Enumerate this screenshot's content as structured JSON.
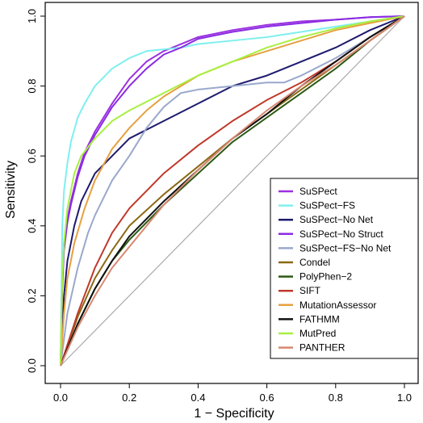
{
  "chart_data": {
    "type": "line",
    "title": "",
    "xlabel": "1 − Specificity",
    "ylabel": "Sensitivity",
    "xlim": [
      0,
      1
    ],
    "ylim": [
      0,
      1
    ],
    "x_ticks": [
      "0.0",
      "0.2",
      "0.4",
      "0.6",
      "0.8",
      "1.0"
    ],
    "y_ticks": [
      "0.0",
      "0.2",
      "0.4",
      "0.6",
      "0.8",
      "1.0"
    ],
    "grid": false,
    "legend_position": "bottom-right",
    "diagonal_color": "#aaaaaa",
    "series": [
      {
        "name": "SuSPect",
        "color": "#9b30e0",
        "points": [
          [
            0,
            0
          ],
          [
            0.005,
            0.25
          ],
          [
            0.01,
            0.35
          ],
          [
            0.02,
            0.42
          ],
          [
            0.03,
            0.47
          ],
          [
            0.05,
            0.55
          ],
          [
            0.07,
            0.61
          ],
          [
            0.1,
            0.67
          ],
          [
            0.15,
            0.75
          ],
          [
            0.2,
            0.82
          ],
          [
            0.25,
            0.87
          ],
          [
            0.3,
            0.9
          ],
          [
            0.35,
            0.92
          ],
          [
            0.4,
            0.94
          ],
          [
            0.5,
            0.96
          ],
          [
            0.6,
            0.975
          ],
          [
            0.7,
            0.985
          ],
          [
            0.8,
            0.99
          ],
          [
            0.9,
            0.997
          ],
          [
            1,
            1
          ]
        ]
      },
      {
        "name": "SuSPect−FS",
        "color": "#7fefef",
        "points": [
          [
            0,
            0
          ],
          [
            0.005,
            0.4
          ],
          [
            0.01,
            0.5
          ],
          [
            0.02,
            0.58
          ],
          [
            0.03,
            0.64
          ],
          [
            0.05,
            0.71
          ],
          [
            0.07,
            0.75
          ],
          [
            0.1,
            0.8
          ],
          [
            0.15,
            0.85
          ],
          [
            0.2,
            0.88
          ],
          [
            0.25,
            0.9
          ],
          [
            0.3,
            0.905
          ],
          [
            0.35,
            0.91
          ],
          [
            0.4,
            0.92
          ],
          [
            0.5,
            0.93
          ],
          [
            0.6,
            0.94
          ],
          [
            0.7,
            0.955
          ],
          [
            0.8,
            0.97
          ],
          [
            0.9,
            0.985
          ],
          [
            1,
            1
          ]
        ]
      },
      {
        "name": "SuSPect−No Net",
        "color": "#1e1a6e",
        "points": [
          [
            0,
            0
          ],
          [
            0.01,
            0.2
          ],
          [
            0.02,
            0.3
          ],
          [
            0.04,
            0.4
          ],
          [
            0.06,
            0.47
          ],
          [
            0.1,
            0.55
          ],
          [
            0.15,
            0.6
          ],
          [
            0.2,
            0.65
          ],
          [
            0.3,
            0.7
          ],
          [
            0.4,
            0.75
          ],
          [
            0.5,
            0.8
          ],
          [
            0.6,
            0.83
          ],
          [
            0.7,
            0.87
          ],
          [
            0.8,
            0.91
          ],
          [
            0.9,
            0.96
          ],
          [
            1,
            1
          ]
        ]
      },
      {
        "name": "SuSPect−No Struct",
        "color": "#8a2be2",
        "points": [
          [
            0,
            0
          ],
          [
            0.005,
            0.22
          ],
          [
            0.01,
            0.33
          ],
          [
            0.02,
            0.41
          ],
          [
            0.03,
            0.46
          ],
          [
            0.05,
            0.54
          ],
          [
            0.07,
            0.6
          ],
          [
            0.1,
            0.66
          ],
          [
            0.15,
            0.74
          ],
          [
            0.2,
            0.8
          ],
          [
            0.25,
            0.85
          ],
          [
            0.3,
            0.89
          ],
          [
            0.35,
            0.91
          ],
          [
            0.4,
            0.935
          ],
          [
            0.5,
            0.955
          ],
          [
            0.6,
            0.97
          ],
          [
            0.7,
            0.98
          ],
          [
            0.8,
            0.99
          ],
          [
            0.9,
            0.997
          ],
          [
            1,
            1
          ]
        ]
      },
      {
        "name": "SuSPect−FS−No Net",
        "color": "#9aa8cc",
        "points": [
          [
            0,
            0
          ],
          [
            0.02,
            0.15
          ],
          [
            0.05,
            0.28
          ],
          [
            0.08,
            0.38
          ],
          [
            0.1,
            0.43
          ],
          [
            0.15,
            0.53
          ],
          [
            0.2,
            0.6
          ],
          [
            0.25,
            0.68
          ],
          [
            0.3,
            0.74
          ],
          [
            0.35,
            0.78
          ],
          [
            0.4,
            0.79
          ],
          [
            0.5,
            0.8
          ],
          [
            0.6,
            0.81
          ],
          [
            0.65,
            0.81
          ],
          [
            0.7,
            0.83
          ],
          [
            0.8,
            0.88
          ],
          [
            0.9,
            0.94
          ],
          [
            1,
            1
          ]
        ]
      },
      {
        "name": "Condel",
        "color": "#8b6914",
        "points": [
          [
            0,
            0
          ],
          [
            0.05,
            0.14
          ],
          [
            0.1,
            0.25
          ],
          [
            0.15,
            0.33
          ],
          [
            0.2,
            0.4
          ],
          [
            0.3,
            0.49
          ],
          [
            0.4,
            0.57
          ],
          [
            0.5,
            0.65
          ],
          [
            0.6,
            0.72
          ],
          [
            0.7,
            0.79
          ],
          [
            0.8,
            0.86
          ],
          [
            0.9,
            0.93
          ],
          [
            1,
            1
          ]
        ]
      },
      {
        "name": "PolyPhen−2",
        "color": "#2d5a14",
        "points": [
          [
            0,
            0
          ],
          [
            0.05,
            0.12
          ],
          [
            0.1,
            0.22
          ],
          [
            0.15,
            0.3
          ],
          [
            0.2,
            0.36
          ],
          [
            0.3,
            0.46
          ],
          [
            0.4,
            0.55
          ],
          [
            0.5,
            0.64
          ],
          [
            0.6,
            0.71
          ],
          [
            0.7,
            0.78
          ],
          [
            0.8,
            0.85
          ],
          [
            0.9,
            0.93
          ],
          [
            1,
            1
          ]
        ]
      },
      {
        "name": "SIFT",
        "color": "#c0392b",
        "points": [
          [
            0,
            0
          ],
          [
            0.05,
            0.15
          ],
          [
            0.1,
            0.28
          ],
          [
            0.15,
            0.38
          ],
          [
            0.2,
            0.45
          ],
          [
            0.3,
            0.55
          ],
          [
            0.4,
            0.63
          ],
          [
            0.5,
            0.7
          ],
          [
            0.6,
            0.76
          ],
          [
            0.7,
            0.81
          ],
          [
            0.8,
            0.87
          ],
          [
            0.9,
            0.94
          ],
          [
            1,
            1
          ]
        ]
      },
      {
        "name": "MutationAssessor",
        "color": "#e6a040",
        "points": [
          [
            0,
            0
          ],
          [
            0.01,
            0.15
          ],
          [
            0.02,
            0.25
          ],
          [
            0.04,
            0.35
          ],
          [
            0.07,
            0.45
          ],
          [
            0.1,
            0.53
          ],
          [
            0.15,
            0.62
          ],
          [
            0.2,
            0.68
          ],
          [
            0.25,
            0.73
          ],
          [
            0.3,
            0.77
          ],
          [
            0.4,
            0.83
          ],
          [
            0.5,
            0.87
          ],
          [
            0.6,
            0.9
          ],
          [
            0.7,
            0.93
          ],
          [
            0.8,
            0.96
          ],
          [
            0.9,
            0.98
          ],
          [
            1,
            1
          ]
        ]
      },
      {
        "name": "FATHMM",
        "color": "#111111",
        "points": [
          [
            0,
            0
          ],
          [
            0.05,
            0.12
          ],
          [
            0.1,
            0.22
          ],
          [
            0.15,
            0.3
          ],
          [
            0.2,
            0.37
          ],
          [
            0.3,
            0.47
          ],
          [
            0.4,
            0.56
          ],
          [
            0.5,
            0.65
          ],
          [
            0.6,
            0.72
          ],
          [
            0.7,
            0.8
          ],
          [
            0.8,
            0.87
          ],
          [
            0.9,
            0.94
          ],
          [
            1,
            1
          ]
        ]
      },
      {
        "name": "MutPred",
        "color": "#a8f040",
        "points": [
          [
            0,
            0
          ],
          [
            0.005,
            0.25
          ],
          [
            0.01,
            0.35
          ],
          [
            0.02,
            0.45
          ],
          [
            0.04,
            0.55
          ],
          [
            0.06,
            0.6
          ],
          [
            0.1,
            0.65
          ],
          [
            0.15,
            0.7
          ],
          [
            0.2,
            0.73
          ],
          [
            0.3,
            0.78
          ],
          [
            0.4,
            0.83
          ],
          [
            0.5,
            0.87
          ],
          [
            0.6,
            0.91
          ],
          [
            0.7,
            0.94
          ],
          [
            0.8,
            0.965
          ],
          [
            0.9,
            0.985
          ],
          [
            1,
            1
          ]
        ]
      },
      {
        "name": "PANTHER",
        "color": "#d88870",
        "points": [
          [
            0,
            0
          ],
          [
            0.05,
            0.11
          ],
          [
            0.1,
            0.2
          ],
          [
            0.15,
            0.28
          ],
          [
            0.2,
            0.34
          ],
          [
            0.3,
            0.46
          ],
          [
            0.4,
            0.56
          ],
          [
            0.5,
            0.65
          ],
          [
            0.6,
            0.73
          ],
          [
            0.7,
            0.8
          ],
          [
            0.8,
            0.86
          ],
          [
            0.9,
            0.93
          ],
          [
            1,
            1
          ]
        ]
      }
    ]
  }
}
